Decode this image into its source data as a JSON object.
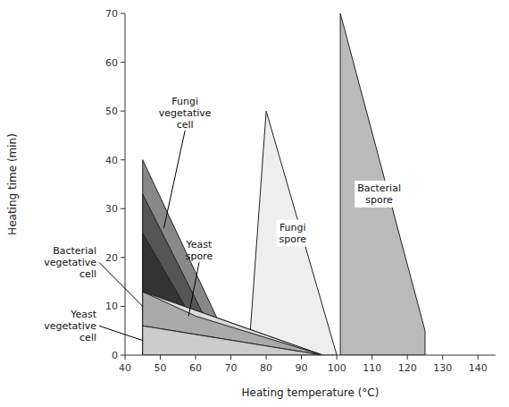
{
  "chart_data": {
    "type": "region",
    "xlabel": "Heating temperature (°C)",
    "ylabel": "Heating time (min)",
    "xlim": [
      40,
      145
    ],
    "ylim": [
      0,
      70
    ],
    "xticks": [
      40,
      50,
      60,
      70,
      80,
      90,
      100,
      110,
      120,
      130,
      140
    ],
    "yticks": [
      0,
      10,
      20,
      30,
      40,
      50,
      60,
      70
    ],
    "grid": false,
    "series": [
      {
        "color": "#888888",
        "x": [
          45,
          45,
          71
        ],
        "values": [
          40,
          0,
          0
        ]
      },
      {
        "color": "#bbbbbb",
        "x": [
          101,
          101,
          125,
          125
        ],
        "values": [
          70,
          0,
          0,
          5
        ]
      },
      {
        "color": "#555555",
        "x": [
          45,
          45,
          68
        ],
        "values": [
          33,
          0,
          0
        ]
      },
      {
        "color": "#eeeeee",
        "x": [
          75,
          80,
          100
        ],
        "values": [
          0,
          50,
          0
        ]
      },
      {
        "color": "#333333",
        "x": [
          45,
          45,
          65
        ],
        "values": [
          25,
          0,
          0
        ]
      },
      {
        "color": "#aaaaaa",
        "x": [
          45,
          45,
          96
        ],
        "values": [
          13,
          6,
          0
        ]
      },
      {
        "color": "#cccccc",
        "x": [
          45,
          45,
          96
        ],
        "values": [
          6,
          0,
          0
        ]
      },
      {
        "color": "#dddddd",
        "x": [
          60,
          45,
          96
        ],
        "values": [
          8,
          13,
          0
        ]
      }
    ],
    "annotations": [
      {
        "text": "Fungi\nvegetative\ncell",
        "x": 51,
        "y": 26,
        "text_x": 57,
        "text_y": 46
      },
      {
        "text": "Yeast\nspore",
        "x": 58,
        "y": 8,
        "text_x": 61,
        "text_y": 19
      },
      {
        "text": "Fungi\nspore",
        "x": 87.5,
        "y": 25
      },
      {
        "text": "Bacterial\nspore",
        "x": 112,
        "y": 33
      },
      {
        "text": "Bacterial\nvegetative\ncell",
        "x": 45,
        "y": 10,
        "text_x": 36,
        "text_y": 19
      },
      {
        "text": "Yeast\nvegetative\ncell",
        "x": 45,
        "y": 3,
        "text_x": 36,
        "text_y": 6
      }
    ]
  }
}
